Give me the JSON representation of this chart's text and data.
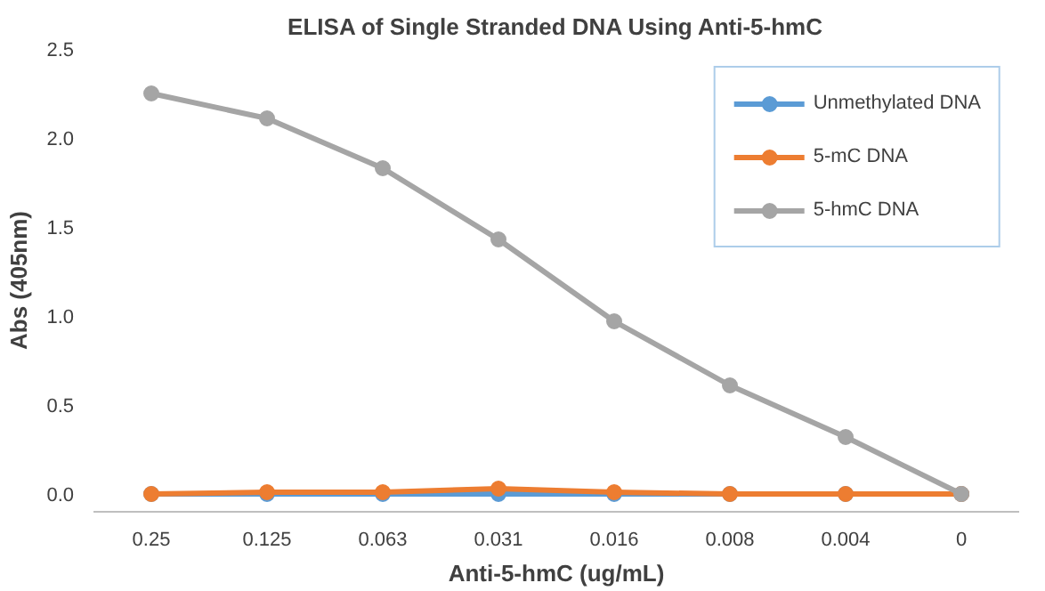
{
  "chart_data": {
    "type": "line",
    "title": "ELISA of Single Stranded DNA Using Anti-5-hmC",
    "xlabel": "Anti-5-hmC (ug/mL)",
    "ylabel": "Abs (405nm)",
    "categories": [
      "0.25",
      "0.125",
      "0.063",
      "0.031",
      "0.016",
      "0.008",
      "0.004",
      "0"
    ],
    "series": [
      {
        "name": "Unmethylated DNA",
        "color": "#5b9bd5",
        "values": [
          0,
          0,
          0,
          0,
          0,
          0,
          0,
          0
        ]
      },
      {
        "name": "5-mC DNA",
        "color": "#ed7d31",
        "values": [
          0,
          0.01,
          0.01,
          0.03,
          0.01,
          0,
          0,
          0
        ]
      },
      {
        "name": "5-hmC DNA",
        "color": "#a5a5a5",
        "values": [
          2.25,
          2.11,
          1.83,
          1.43,
          0.97,
          0.61,
          0.32,
          0
        ]
      }
    ],
    "ylim": [
      -0.1,
      2.5
    ],
    "yticks": [
      {
        "value": 0,
        "label": "0.0"
      },
      {
        "value": 0.5,
        "label": "0.5"
      },
      {
        "value": 1,
        "label": "1.0"
      },
      {
        "value": 1.5,
        "label": "1.5"
      },
      {
        "value": 2,
        "label": "2.0"
      },
      {
        "value": 2.5,
        "label": "2.5"
      }
    ],
    "marker": "circle",
    "legend": "top right",
    "grid": false
  }
}
